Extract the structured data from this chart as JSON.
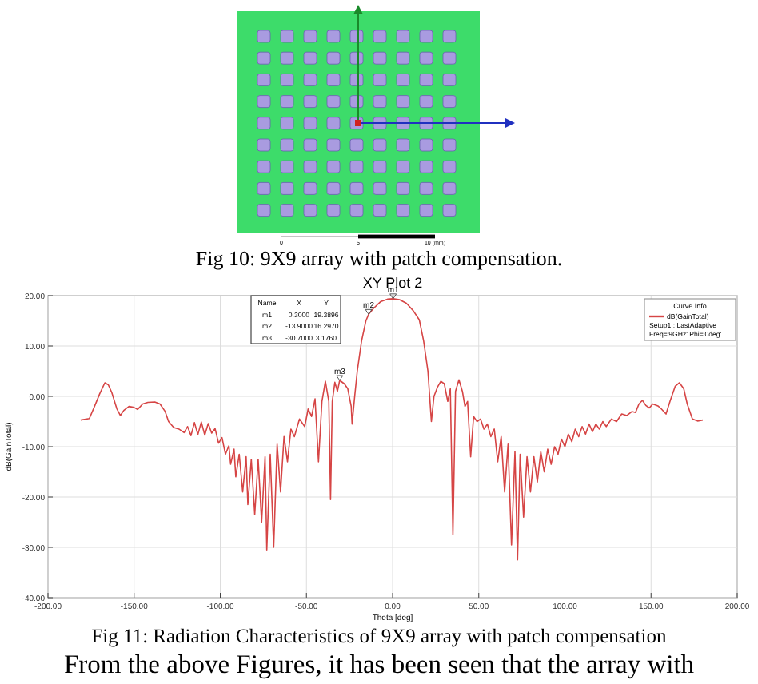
{
  "chart_data": {
    "type": "line",
    "title": "XY Plot 2",
    "xlabel": "Theta [deg]",
    "ylabel": "dB(GainTotal)",
    "legend_title": "Curve Info",
    "legend": "top right",
    "grid": true,
    "marker": "none",
    "line_style": "solid",
    "xlim": [
      -200,
      200
    ],
    "ylim": [
      -40,
      20
    ],
    "xticks": [
      {
        "value": -200,
        "label": "-200.00"
      },
      {
        "value": -150,
        "label": "-150.00"
      },
      {
        "value": -100,
        "label": "-100.00"
      },
      {
        "value": -50,
        "label": "-50.00"
      },
      {
        "value": 0,
        "label": "0.00"
      },
      {
        "value": 50,
        "label": "50.00"
      },
      {
        "value": 100,
        "label": "100.00"
      },
      {
        "value": 150,
        "label": "150.00"
      },
      {
        "value": 200,
        "label": "200.00"
      }
    ],
    "yticks": [
      {
        "value": -40,
        "label": "-40.00"
      },
      {
        "value": -30,
        "label": "-30.00"
      },
      {
        "value": -20,
        "label": "-20.00"
      },
      {
        "value": -10,
        "label": "-10.00"
      },
      {
        "value": 0,
        "label": "0.00"
      },
      {
        "value": 10,
        "label": "10.00"
      },
      {
        "value": 20,
        "label": "20.00"
      }
    ],
    "x": [
      -181,
      -176,
      -173,
      -170,
      -167,
      -165,
      -163,
      -160,
      -158,
      -156,
      -153,
      -150,
      -148,
      -145,
      -142,
      -138,
      -135,
      -132,
      -130,
      -127,
      -124,
      -121,
      -119,
      -117,
      -115,
      -113,
      -111,
      -109,
      -107,
      -105,
      -103,
      -101,
      -99,
      -97,
      -95,
      -94,
      -92,
      -91,
      -89,
      -87,
      -85,
      -84,
      -82,
      -80,
      -78,
      -76,
      -74,
      -73,
      -71,
      -69,
      -67,
      -65,
      -63,
      -61,
      -59,
      -57,
      -54,
      -51,
      -49,
      -47,
      -45,
      -43,
      -41,
      -39,
      -37,
      -36,
      -35,
      -33.5,
      -32,
      -30.7,
      -28,
      -26,
      -24,
      -23.5,
      -22,
      -20.5,
      -18,
      -15.5,
      -13.9,
      -11,
      -7,
      -3,
      0.3,
      4,
      8,
      12,
      15.5,
      18,
      20.5,
      22.5,
      24,
      26,
      28,
      30,
      32,
      33.5,
      35,
      36.5,
      38.5,
      40.5,
      42,
      43.5,
      45.3,
      47,
      49,
      51,
      53,
      55,
      57,
      59,
      61,
      63,
      65,
      67,
      69,
      71,
      72.5,
      74,
      76,
      78,
      80,
      82,
      84,
      86,
      88,
      90,
      92,
      94,
      96,
      98,
      100,
      102,
      104,
      106,
      108,
      110,
      112,
      114,
      116,
      118,
      120,
      122,
      124,
      127,
      130,
      133,
      136,
      139,
      141,
      143,
      145,
      147,
      149,
      151,
      154,
      156,
      158.7,
      161,
      164,
      166.5,
      169,
      171,
      174,
      177,
      180
    ],
    "series": [
      {
        "name": "dB(GainTotal)",
        "color": "#d64545",
        "values": [
          -4.7,
          -4.4,
          -2,
          0.5,
          2.7,
          2.3,
          0.8,
          -2.5,
          -3.8,
          -2.8,
          -2,
          -2.2,
          -2.6,
          -1.5,
          -1.2,
          -1.1,
          -1.5,
          -3,
          -5,
          -6.2,
          -6.5,
          -7.2,
          -6,
          -7.8,
          -5.2,
          -7.6,
          -5.1,
          -7.7,
          -5.4,
          -7.3,
          -6.4,
          -9.3,
          -8.2,
          -11.5,
          -9.8,
          -13.5,
          -10.5,
          -16,
          -11.5,
          -19,
          -12,
          -21.5,
          -12.5,
          -23.5,
          -12.5,
          -25,
          -12,
          -30.5,
          -11.5,
          -30,
          -9.5,
          -19,
          -8,
          -13,
          -6.5,
          -8,
          -4.5,
          -6,
          -2.5,
          -4,
          -0.5,
          -13,
          -1,
          3,
          -1,
          -20.5,
          -1,
          2.8,
          1,
          3.176,
          2.5,
          1.5,
          -2,
          -5.5,
          0,
          5,
          11,
          15,
          16.297,
          17.5,
          18.8,
          19.3,
          19.3896,
          19.2,
          18.5,
          17,
          15.2,
          11,
          5,
          -5,
          0,
          1.8,
          3,
          2.5,
          -1,
          1.5,
          -27.5,
          1,
          3.3,
          1,
          -2,
          -1,
          -12,
          -4,
          -5,
          -4.5,
          -6.5,
          -5.5,
          -8,
          -6.5,
          -13,
          -8,
          -19,
          -9.5,
          -29.5,
          -11,
          -32.5,
          -11.5,
          -24,
          -12,
          -19,
          -12,
          -17,
          -11,
          -15,
          -10.5,
          -13.5,
          -10,
          -11.5,
          -8.5,
          -10,
          -7.5,
          -9,
          -6.5,
          -8,
          -6,
          -7.5,
          -5.5,
          -7,
          -5.5,
          -6.5,
          -5,
          -6,
          -4.5,
          -5,
          -3.5,
          -3.8,
          -3,
          -3.2,
          -1.5,
          -0.8,
          -1.8,
          -2.3,
          -1.5,
          -1.9,
          -2.5,
          -3.5,
          -1,
          2,
          2.7,
          1.5,
          -1.5,
          -4.5,
          -4.9,
          -4.7
        ]
      }
    ],
    "annotations": [
      "Fig 10: 9X9 array with patch compensation.",
      "Fig 11: Radiation Characteristics of 9X9 array with patch compensation",
      "From the above Figures, it has been seen that the array with",
      "Setup1 : LastAdaptive",
      "Freq='9GHz' Phi='0deg'",
      "Name",
      "X",
      "Y",
      "m1",
      "0.3000",
      "19.3896",
      "m2",
      "-13.9000",
      "16.2970",
      "m3",
      "-30.7000",
      "3.1760",
      {
        "text": "m1",
        "x": 0.3,
        "y": 19.3896
      },
      {
        "text": "m2",
        "x": -13.9,
        "y": 16.297
      },
      {
        "text": "m3",
        "x": -30.7,
        "y": 3.176
      },
      "0",
      "5",
      "10 (mm)"
    ]
  }
}
